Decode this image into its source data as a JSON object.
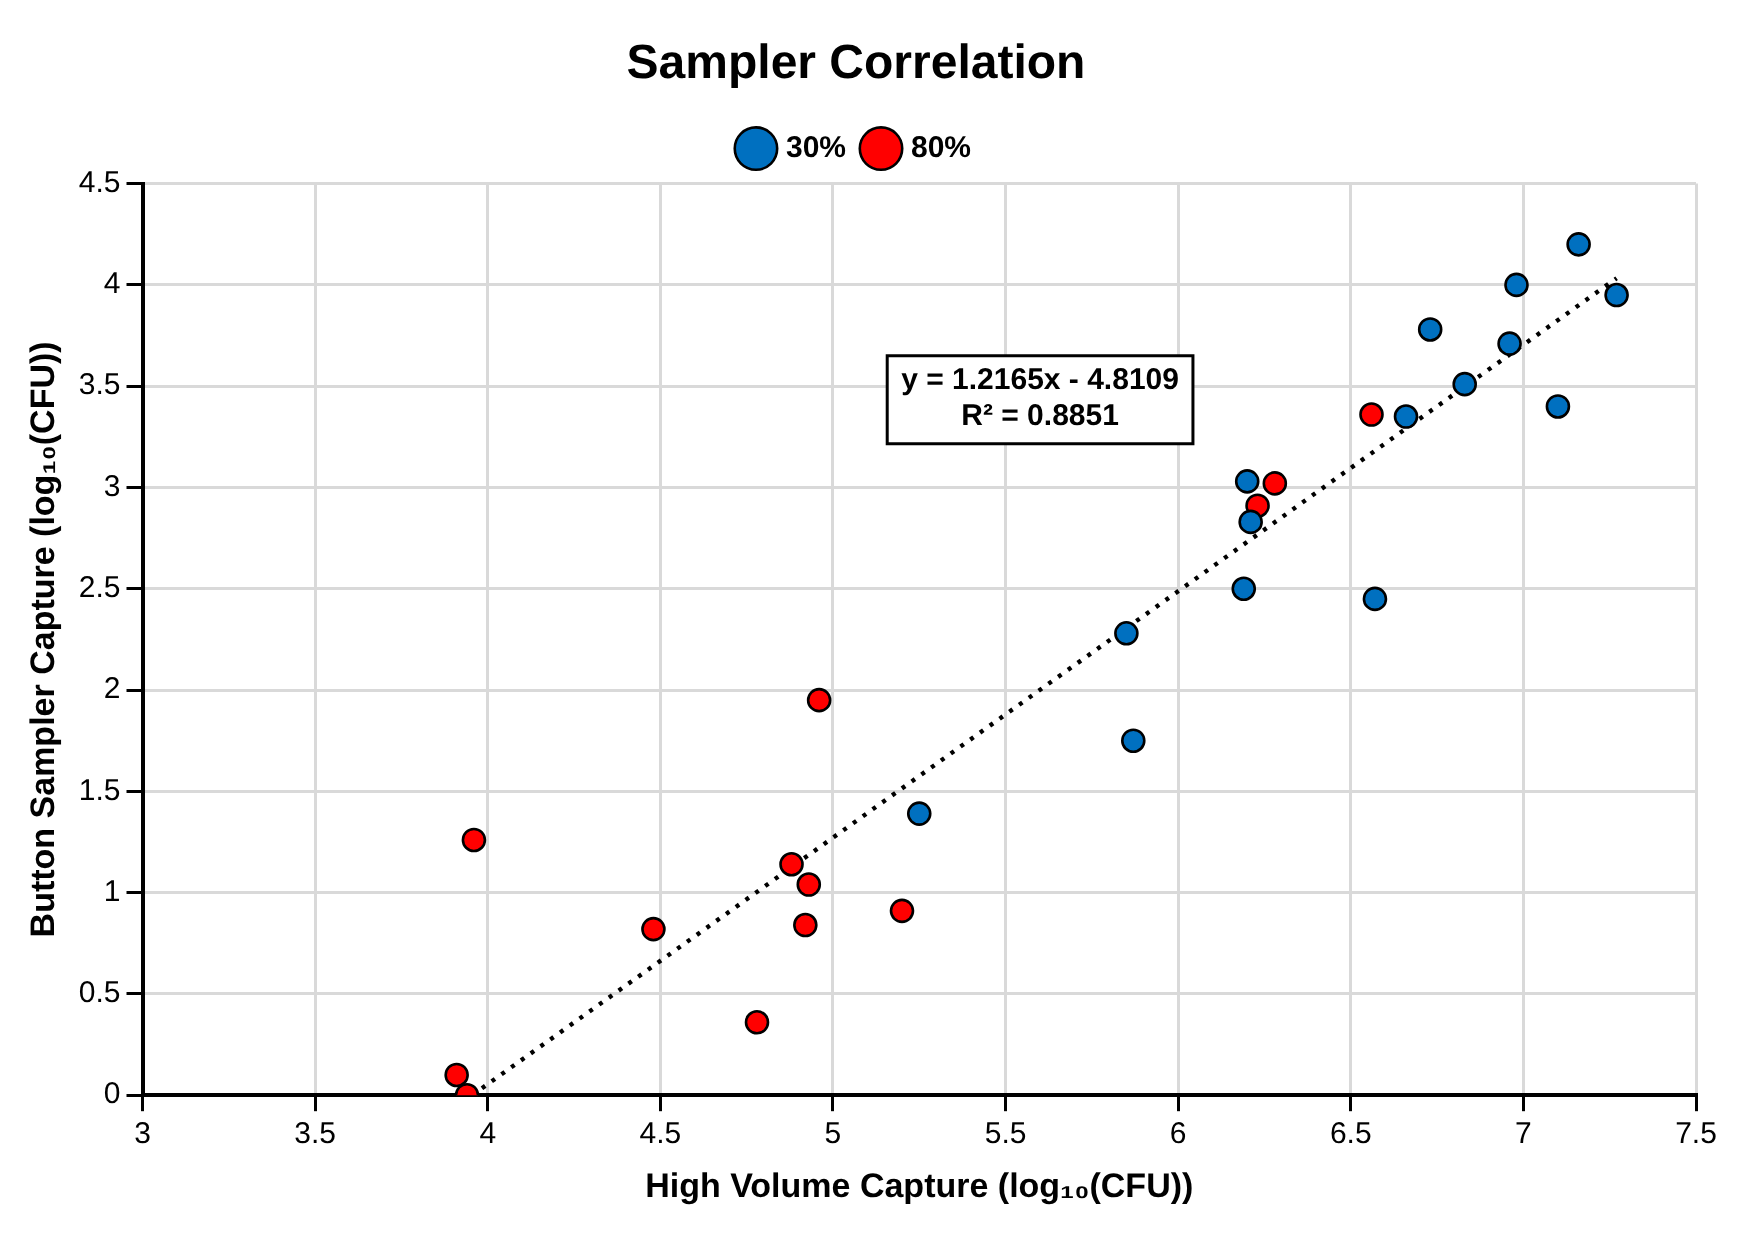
{
  "chart_data": {
    "type": "scatter",
    "title": "Sampler Correlation",
    "xlabel": "High Volume Capture (log₁₀(CFU))",
    "ylabel": "Button Sampler Capture (log₁₀(CFU))",
    "annotations": [
      "y = 1.2165x - 4.8109",
      "R² = 0.8851"
    ],
    "series": [
      {
        "name": "30%",
        "color": "#0070c0",
        "x": [
          5.25,
          5.85,
          5.87,
          6.19,
          6.2,
          6.21,
          6.57,
          6.66,
          6.73,
          6.83,
          6.96,
          6.98,
          7.1,
          7.16,
          7.27
        ],
        "values": [
          1.39,
          2.28,
          1.75,
          2.5,
          3.03,
          2.83,
          2.45,
          3.35,
          3.78,
          3.51,
          3.71,
          4.0,
          3.4,
          4.2,
          3.95
        ]
      },
      {
        "name": "80%",
        "color": "#ff0000",
        "x": [
          3.91,
          3.94,
          3.96,
          4.48,
          4.78,
          4.88,
          4.92,
          4.93,
          4.96,
          5.2,
          6.23,
          6.28,
          6.56
        ],
        "values": [
          0.1,
          0,
          1.26,
          0.82,
          0.36,
          1.14,
          0.84,
          1.04,
          1.95,
          0.91,
          2.91,
          3.02,
          3.36
        ]
      },
      {
        "type": "line",
        "line_style": "dotted",
        "marker": "none",
        "color": "#000000",
        "x": [
          3.955,
          7.27
        ],
        "values": [
          0,
          4.033
        ]
      }
    ],
    "marker": "circle",
    "xlim": [
      3,
      7.5
    ],
    "xticks": [
      3,
      3.5,
      4,
      4.5,
      5,
      5.5,
      6,
      6.5,
      7,
      7.5
    ],
    "ylim": [
      0,
      4.5
    ],
    "yticks": [
      0,
      0.5,
      1,
      1.5,
      2,
      2.5,
      3,
      3.5,
      4,
      4.5
    ],
    "grid": true,
    "legend": "top"
  }
}
